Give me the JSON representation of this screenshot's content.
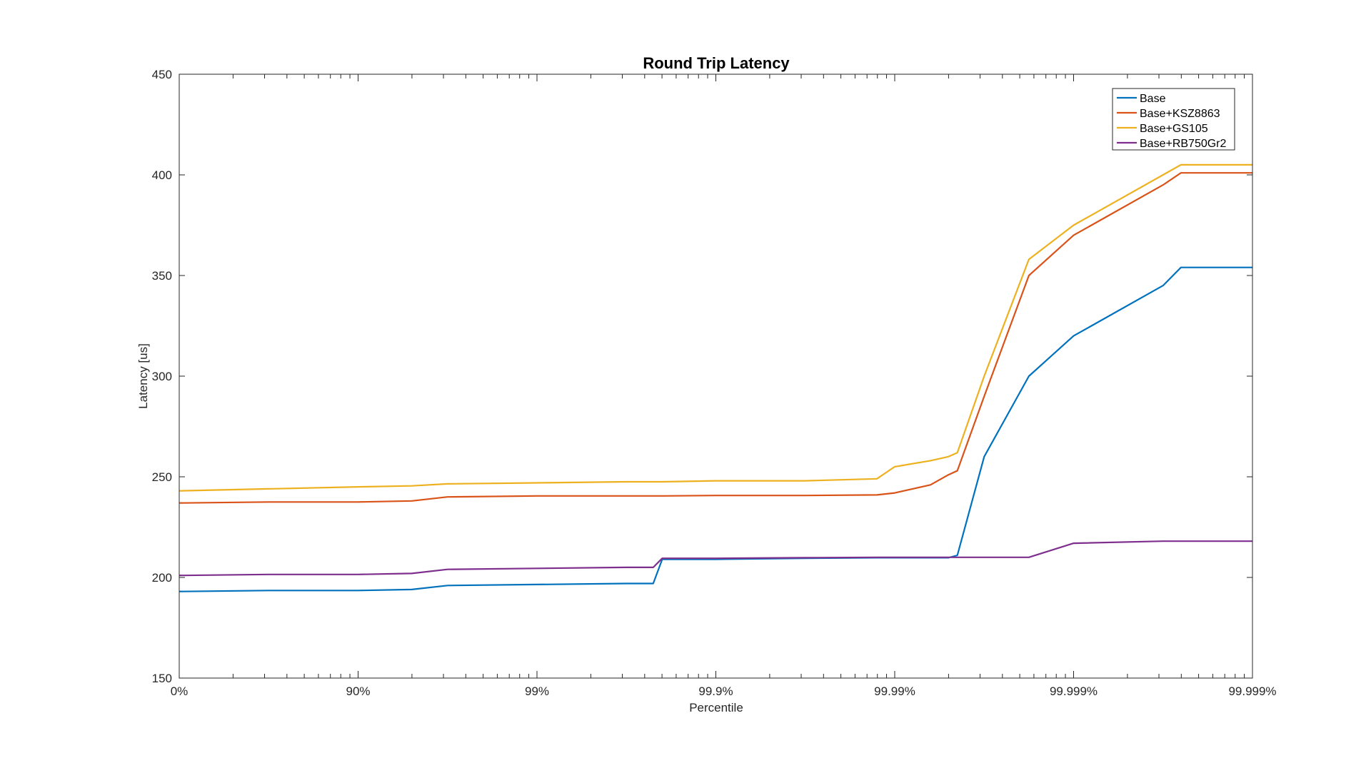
{
  "chart_data": {
    "type": "line",
    "title": "Round Trip Latency",
    "xlabel": "Percentile",
    "ylabel": "Latency [us]",
    "x_scale": "log-nines",
    "x_tick_labels": [
      "0%",
      "90%",
      "99%",
      "99.9%",
      "99.99%",
      "99.999%",
      "99.999%"
    ],
    "xlim": [
      0,
      6
    ],
    "ylim": [
      150,
      450
    ],
    "y_ticks": [
      150,
      200,
      250,
      300,
      350,
      400,
      450
    ],
    "legend_position": "top-right",
    "grid": false,
    "x": [
      0,
      0.5,
      1,
      1.3,
      1.5,
      2,
      2.5,
      2.65,
      2.7,
      3,
      3.5,
      3.9,
      4,
      4.2,
      4.3,
      4.35,
      4.5,
      4.75,
      5,
      5.5,
      5.6,
      6
    ],
    "series": [
      {
        "name": "Base",
        "color": "#0072BD",
        "values": [
          193,
          193.5,
          193.5,
          194,
          196,
          196.5,
          197,
          197,
          209,
          209,
          209.5,
          209.8,
          209.8,
          209.8,
          209.8,
          211,
          260,
          300,
          320,
          345,
          354,
          354
        ]
      },
      {
        "name": "Base+KSZ8863",
        "color": "#D95319",
        "values": [
          237,
          237.5,
          237.5,
          238,
          240,
          240.5,
          240.5,
          240.5,
          240.5,
          240.7,
          240.7,
          241,
          242,
          246,
          251,
          253,
          290,
          350,
          370,
          395,
          401,
          401
        ]
      },
      {
        "name": "Base+GS105",
        "color": "#EDB120",
        "values": [
          243,
          244,
          245,
          245.5,
          246.5,
          247,
          247.5,
          247.5,
          247.5,
          248,
          248,
          249,
          255,
          258,
          260,
          262,
          300,
          358,
          375,
          400,
          405,
          405
        ]
      },
      {
        "name": "Base+RB750Gr2",
        "color": "#7E2F8E",
        "values": [
          201,
          201.5,
          201.5,
          202,
          204,
          204.5,
          205,
          205,
          209.5,
          209.5,
          209.8,
          210,
          210,
          210,
          210,
          210,
          210,
          210,
          217,
          218,
          218,
          218
        ]
      }
    ]
  }
}
